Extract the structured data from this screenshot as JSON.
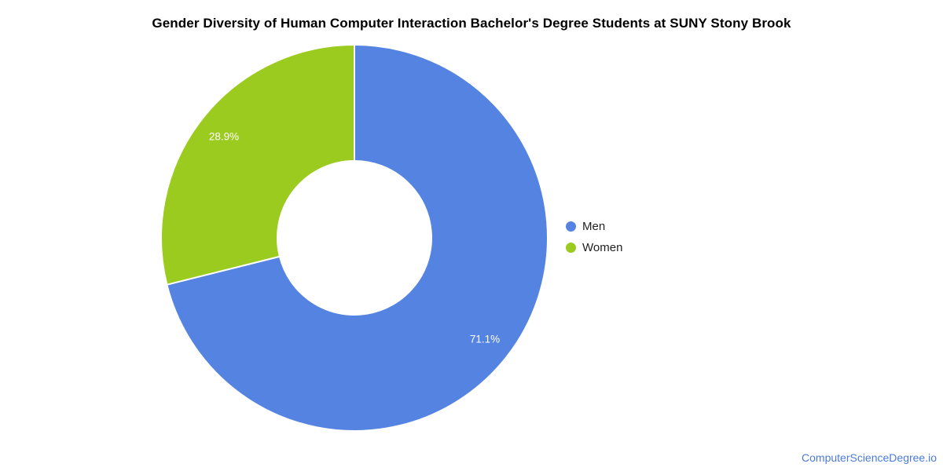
{
  "chart_data": {
    "type": "pie",
    "donut": true,
    "title": "Gender Diversity of Human Computer Interaction Bachelor's Degree Students at SUNY Stony Brook",
    "start_angle_deg": 0,
    "direction": "clockwise",
    "legend_position": "right",
    "separator_color": "#ffffff",
    "slice_label_color": "#ffffff",
    "series": [
      {
        "name": "Men",
        "value": 71.1,
        "label": "71.1%",
        "color": "#5483e1"
      },
      {
        "name": "Women",
        "value": 28.9,
        "label": "28.9%",
        "color": "#9ccb1f"
      }
    ]
  },
  "footer": {
    "watermark": "ComputerScienceDegree.io",
    "watermark_color": "#4a7bd6"
  }
}
